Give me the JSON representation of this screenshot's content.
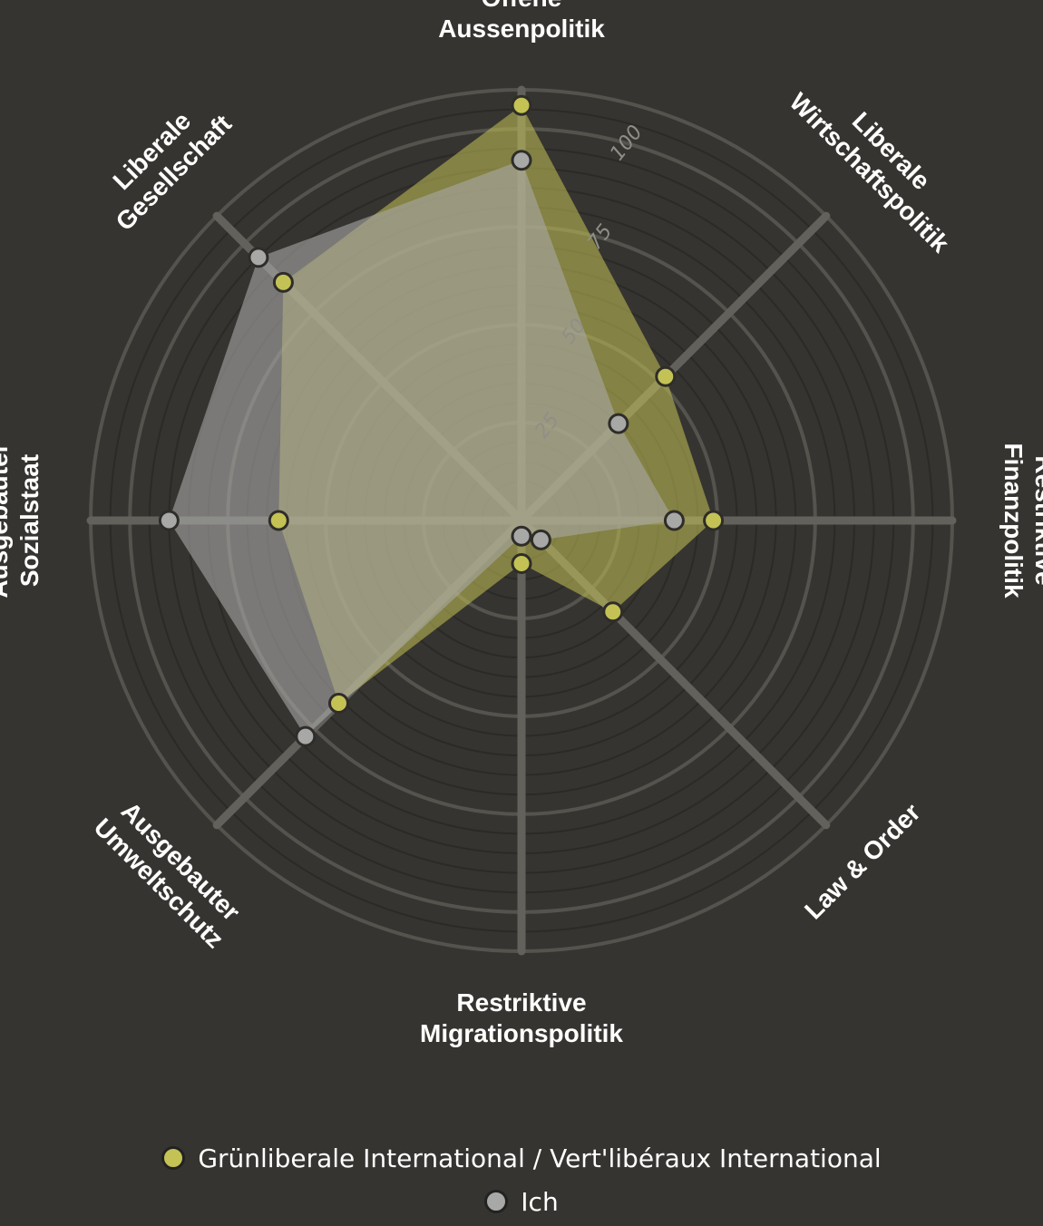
{
  "chart_data": {
    "type": "radar",
    "axes": [
      [
        "Offene",
        "Aussenpolitik"
      ],
      [
        "Liberale",
        "Wirtschaftspolitik"
      ],
      [
        "Restriktive",
        "Finanzpolitik"
      ],
      [
        "Law & Order"
      ],
      [
        "Restriktive",
        "Migrationspolitik"
      ],
      [
        "Ausgebauter",
        "Umweltschutz"
      ],
      [
        "Ausgebauter",
        "Sozialstaat"
      ],
      [
        "Liberale",
        "Gesellschaft"
      ]
    ],
    "rlim": [
      0,
      110
    ],
    "ticks": [
      25,
      50,
      75,
      100
    ],
    "tick_labels": [
      "25",
      "50",
      "75",
      "100"
    ],
    "series": [
      {
        "name": "Grünliberale International / Vert'libéraux International",
        "values": [
          106,
          52,
          49,
          33,
          11,
          66,
          62,
          86
        ],
        "color": "#c4c255"
      },
      {
        "name": "Ich",
        "values": [
          92,
          35,
          39,
          7,
          4,
          78,
          90,
          95
        ],
        "color": "#a8a8a6"
      }
    ]
  },
  "colors": {
    "background": "#363430",
    "grid": "#4d4b46",
    "spoke": "#63615c",
    "series1": "#c4c255",
    "series2": "#a8a8a6"
  }
}
